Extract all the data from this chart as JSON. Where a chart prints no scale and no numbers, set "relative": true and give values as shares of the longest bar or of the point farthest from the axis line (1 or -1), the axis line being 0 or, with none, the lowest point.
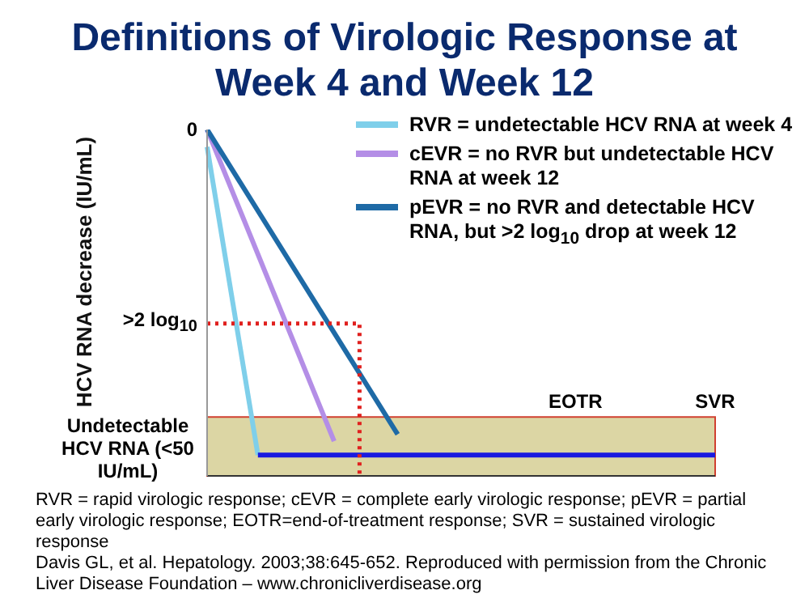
{
  "chart_data": {
    "type": "line",
    "title": "Definitions of Virologic Response at Week 4 and Week 12",
    "relative": true,
    "categories": [
      null,
      null,
      null,
      null,
      null,
      null,
      null,
      null,
      null,
      null,
      null,
      null,
      null,
      null,
      null,
      null,
      null,
      null,
      null,
      null,
      null,
      null,
      null,
      null,
      null,
      null,
      null,
      null,
      null,
      "EOTR",
      null,
      null,
      null,
      null,
      null,
      null,
      null,
      null,
      null,
      null,
      "SVR"
    ],
    "marker": "none",
    "legend": "top right",
    "series": [
      {
        "name": "RVR = undetectable HCV RNA at week 4",
        "color": "#7fcfea",
        "values": [
          0.95,
          null,
          null,
          null,
          0.06,
          null,
          null,
          null,
          null,
          null,
          null,
          null,
          null,
          null,
          null,
          null,
          null,
          null,
          null,
          null,
          null,
          null,
          null,
          null,
          null,
          null,
          null,
          null,
          null,
          null,
          null,
          null,
          null,
          null,
          null,
          null,
          null,
          null,
          null,
          null,
          null
        ]
      },
      {
        "name": "cEVR = no RVR but undetectable HCV RNA at week 12",
        "color": "#b48ee6",
        "values": [
          1,
          null,
          null,
          null,
          null,
          null,
          null,
          null,
          null,
          null,
          0.1,
          null,
          null,
          null,
          null,
          null,
          null,
          null,
          null,
          null,
          null,
          null,
          null,
          null,
          null,
          null,
          null,
          null,
          null,
          null,
          null,
          null,
          null,
          null,
          null,
          null,
          null,
          null,
          null,
          null,
          null
        ]
      },
      {
        "name": "pEVR = no RVR and detectable HCV RNA, but >2 log$_{10}$ drop at week 12",
        "color": "#1e6aa6",
        "values": [
          1,
          null,
          null,
          null,
          null,
          null,
          null,
          null,
          null,
          null,
          null,
          null,
          null,
          null,
          null,
          0.12,
          null,
          null,
          null,
          null,
          null,
          null,
          null,
          null,
          null,
          null,
          null,
          null,
          null,
          null,
          null,
          null,
          null,
          null,
          null,
          null,
          null,
          null,
          null,
          null,
          null
        ]
      },
      {
        "color": "#1a1ae0",
        "values": [
          null,
          null,
          null,
          null,
          0.06,
          null,
          null,
          null,
          null,
          null,
          null,
          null,
          null,
          null,
          null,
          null,
          null,
          null,
          null,
          null,
          null,
          null,
          null,
          null,
          null,
          null,
          null,
          null,
          null,
          null,
          null,
          null,
          null,
          null,
          null,
          null,
          null,
          null,
          null,
          null,
          0.06
        ]
      },
      {
        "type": "step",
        "color": "#e0201e",
        "line_style": "dotted",
        "values": [
          0.44,
          null,
          null,
          null,
          null,
          null,
          null,
          null,
          null,
          null,
          null,
          0.44,
          0,
          null,
          null,
          null,
          null,
          null,
          null,
          null,
          null,
          null,
          null,
          null,
          null,
          null,
          null,
          null,
          null,
          null,
          null,
          null,
          null,
          null,
          null,
          null,
          null,
          null,
          null,
          null,
          null
        ]
      }
    ],
    "bands": [
      {
        "axis": "y",
        "from": 0,
        "to": 0.17,
        "color": "#dcd6a4"
      }
    ],
    "annotations": [
      "0",
      ">2 log$_{10}$",
      "Undetectable HCV RNA (<50 IU/mL)",
      "HCV RNA decrease (IU/mL)",
      "RVR = rapid virologic response;  cEVR = complete early virologic response; pEVR = partial early virologic response; EOTR=end-of-treatment response; SVR = sustained virologic response",
      "Davis GL, et al. Hepatology. 2003;38:645-652. Reproduced with permission from the Chronic Liver Disease Foundation – www.chronicliverdisease.org"
    ]
  }
}
